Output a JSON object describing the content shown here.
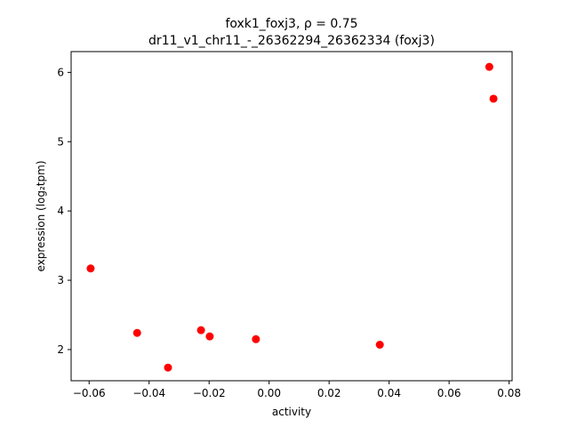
{
  "chart_data": {
    "type": "scatter",
    "title_line1": "foxk1_foxj3, ρ = 0.75",
    "title_line2": "dr11_v1_chr11_-_26362294_26362334 (foxj3)",
    "xlabel": "activity",
    "ylabel": "expression (log₂tpm)",
    "xlim": [
      -0.066,
      0.081
    ],
    "ylim": [
      1.55,
      6.3
    ],
    "x_ticks": [
      -0.06,
      -0.04,
      -0.02,
      0.0,
      0.02,
      0.04,
      0.06,
      0.08
    ],
    "x_tick_labels": [
      "−0.06",
      "−0.04",
      "−0.02",
      "0.00",
      "0.02",
      "0.04",
      "0.06",
      "0.08"
    ],
    "y_ticks": [
      2,
      3,
      4,
      5,
      6
    ],
    "y_tick_labels": [
      "2",
      "3",
      "4",
      "5",
      "6"
    ],
    "marker_color": "#ff0000",
    "grid": false,
    "points": [
      {
        "x": -0.0595,
        "y": 3.17
      },
      {
        "x": -0.044,
        "y": 2.24
      },
      {
        "x": -0.0337,
        "y": 1.74
      },
      {
        "x": -0.0227,
        "y": 2.28
      },
      {
        "x": -0.0198,
        "y": 2.19
      },
      {
        "x": -0.0044,
        "y": 2.15
      },
      {
        "x": 0.0369,
        "y": 2.07
      },
      {
        "x": 0.0734,
        "y": 6.08
      },
      {
        "x": 0.0748,
        "y": 5.62
      }
    ]
  }
}
